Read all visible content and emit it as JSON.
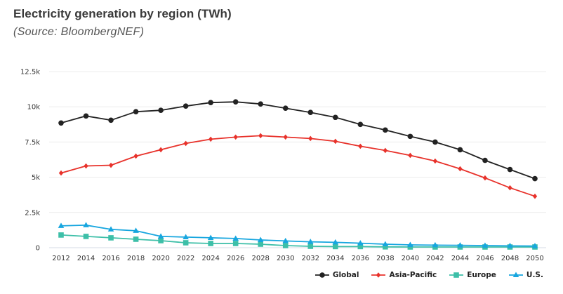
{
  "chart_data": {
    "type": "line",
    "title": "Electricity generation by region (TWh)",
    "subtitle": "(Source: BloombergNEF)",
    "xlabel": "",
    "ylabel": "",
    "x": [
      2012,
      2014,
      2016,
      2018,
      2020,
      2022,
      2024,
      2026,
      2028,
      2030,
      2032,
      2034,
      2036,
      2038,
      2040,
      2042,
      2044,
      2046,
      2048,
      2050
    ],
    "x_tick_labels": [
      "2012",
      "2014",
      "2016",
      "2018",
      "2020",
      "2022",
      "2024",
      "2026",
      "2028",
      "2030",
      "2032",
      "2034",
      "2036",
      "2038",
      "2040",
      "2042",
      "2044",
      "2046",
      "2048",
      "2050"
    ],
    "ylim": [
      0,
      12500
    ],
    "y_ticks": [
      0,
      2500,
      5000,
      7500,
      10000,
      12500
    ],
    "y_tick_labels": [
      "0",
      "2.5k",
      "5k",
      "7.5k",
      "10k",
      "12.5k"
    ],
    "grid": true,
    "legend_position": "bottom-right",
    "series": [
      {
        "name": "Global",
        "color": "#222222",
        "marker": "circle",
        "values": [
          8850,
          9350,
          9050,
          9650,
          9750,
          10050,
          10300,
          10350,
          10200,
          9900,
          9600,
          9250,
          8750,
          8350,
          7900,
          7500,
          6950,
          6200,
          5550,
          4900
        ]
      },
      {
        "name": "Asia-Pacific",
        "color": "#e8322b",
        "marker": "diamond",
        "values": [
          5300,
          5800,
          5850,
          6500,
          6950,
          7400,
          7700,
          7850,
          7950,
          7850,
          7750,
          7550,
          7200,
          6900,
          6550,
          6150,
          5600,
          4950,
          4250,
          3650
        ]
      },
      {
        "name": "Europe",
        "color": "#3dbfa8",
        "marker": "square",
        "values": [
          900,
          800,
          700,
          600,
          500,
          350,
          300,
          300,
          250,
          150,
          100,
          80,
          80,
          60,
          50,
          50,
          50,
          50,
          50,
          50
        ]
      },
      {
        "name": "U.S.",
        "color": "#17a6df",
        "marker": "triangle",
        "values": [
          1550,
          1600,
          1300,
          1200,
          800,
          750,
          700,
          650,
          550,
          480,
          420,
          380,
          320,
          250,
          200,
          180,
          170,
          150,
          130,
          120
        ]
      }
    ]
  }
}
